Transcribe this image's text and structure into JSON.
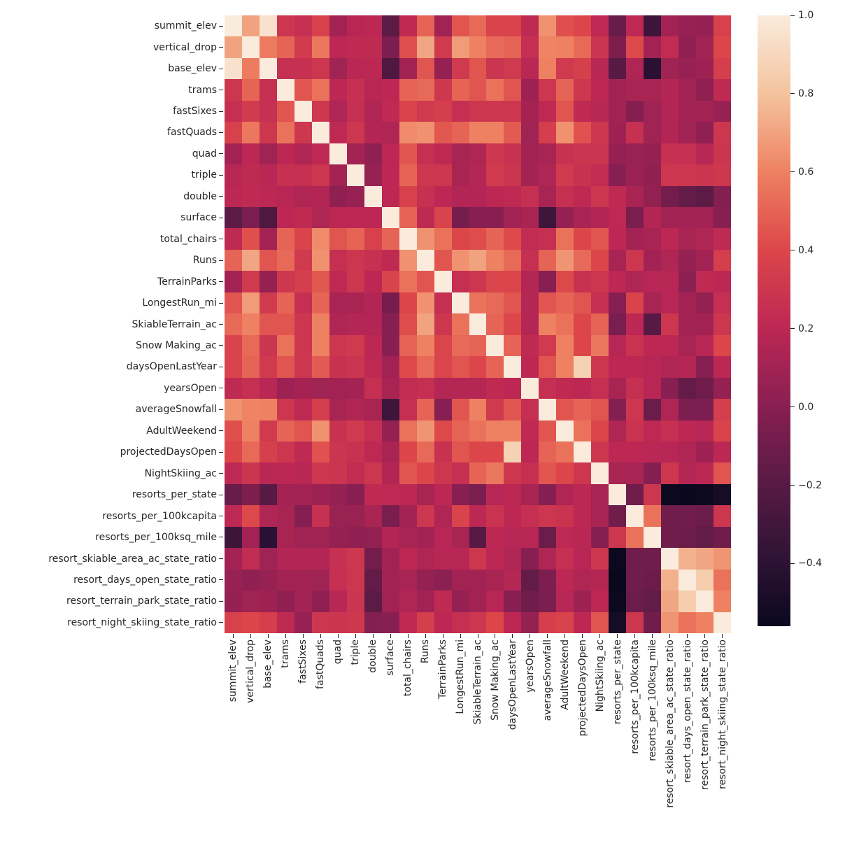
{
  "figure": {
    "background": "#ffffff",
    "text_color": "#262626"
  },
  "chart_data": {
    "type": "heatmap",
    "title": "",
    "xlabel": "",
    "ylabel": "",
    "legend_position": "colorbar-right",
    "grid": false,
    "symmetric": true,
    "colormap": "rocket",
    "vmin": -0.56,
    "vmax": 1.0,
    "variables": [
      "summit_elev",
      "vertical_drop",
      "base_elev",
      "trams",
      "fastSixes",
      "fastQuads",
      "quad",
      "triple",
      "double",
      "surface",
      "total_chairs",
      "Runs",
      "TerrainParks",
      "LongestRun_mi",
      "SkiableTerrain_ac",
      "Snow Making_ac",
      "daysOpenLastYear",
      "yearsOpen",
      "averageSnowfall",
      "AdultWeekend",
      "projectedDaysOpen",
      "NightSkiing_ac",
      "resorts_per_state",
      "resorts_per_100kcapita",
      "resorts_per_100ksq_mile",
      "resort_skiable_area_ac_state_ratio",
      "resort_days_open_state_ratio",
      "resort_terrain_park_state_ratio",
      "resort_night_skiing_state_ratio"
    ],
    "matrix_upper_triangle_by_row": [
      [
        1.0,
        0.7,
        0.95,
        0.3,
        0.25,
        0.37,
        0.1,
        0.18,
        0.2,
        -0.18,
        0.22,
        0.5,
        0.1,
        0.45,
        0.52,
        0.38,
        0.38,
        0.22,
        0.65,
        0.43,
        0.4,
        0.21,
        -0.13,
        0.21,
        -0.32,
        0.1,
        0.06,
        0.05,
        0.37
      ],
      [
        1.0,
        0.58,
        0.5,
        0.33,
        0.57,
        0.2,
        0.22,
        0.22,
        -0.05,
        0.43,
        0.71,
        0.32,
        0.68,
        0.6,
        0.52,
        0.5,
        0.25,
        0.61,
        0.6,
        0.52,
        0.29,
        -0.04,
        0.41,
        0.1,
        0.23,
        0.03,
        0.09,
        0.4
      ],
      [
        1.0,
        0.25,
        0.26,
        0.3,
        0.09,
        0.19,
        0.2,
        -0.24,
        0.1,
        0.45,
        0.05,
        0.32,
        0.45,
        0.29,
        0.32,
        0.19,
        0.6,
        0.32,
        0.36,
        0.19,
        -0.2,
        0.15,
        -0.41,
        0.09,
        0.06,
        0.08,
        0.35
      ],
      [
        1.0,
        0.45,
        0.55,
        0.2,
        0.26,
        0.18,
        0.2,
        0.5,
        0.52,
        0.31,
        0.5,
        0.45,
        0.55,
        0.45,
        0.08,
        0.3,
        0.5,
        0.3,
        0.2,
        0.1,
        0.12,
        0.12,
        0.16,
        0.1,
        0.03,
        0.22
      ],
      [
        1.0,
        0.31,
        0.15,
        0.25,
        0.15,
        0.22,
        0.38,
        0.32,
        0.35,
        0.25,
        0.3,
        0.3,
        0.3,
        0.11,
        0.21,
        0.45,
        0.22,
        0.19,
        0.1,
        -0.01,
        0.09,
        0.16,
        0.1,
        0.1,
        0.06
      ],
      [
        1.0,
        0.21,
        0.3,
        0.16,
        0.15,
        0.63,
        0.65,
        0.46,
        0.5,
        0.6,
        0.6,
        0.47,
        0.09,
        0.35,
        0.65,
        0.44,
        0.3,
        0.08,
        0.26,
        0.09,
        0.16,
        0.09,
        0.03,
        0.3
      ],
      [
        1.0,
        0.1,
        0.03,
        0.2,
        0.45,
        0.25,
        0.21,
        0.12,
        0.15,
        0.3,
        0.27,
        0.1,
        0.12,
        0.27,
        0.29,
        0.29,
        0.05,
        0.07,
        0.05,
        0.26,
        0.25,
        0.19,
        0.29
      ],
      [
        1.0,
        0.06,
        0.2,
        0.5,
        0.3,
        0.3,
        0.13,
        0.17,
        0.32,
        0.29,
        0.11,
        0.15,
        0.32,
        0.27,
        0.23,
        0.0,
        0.07,
        0.03,
        0.3,
        0.3,
        0.29,
        0.31
      ],
      [
        1.0,
        0.2,
        0.37,
        0.26,
        0.2,
        0.16,
        0.16,
        0.2,
        0.21,
        0.25,
        0.12,
        0.25,
        0.21,
        0.3,
        0.22,
        0.12,
        0.04,
        -0.08,
        -0.15,
        -0.18,
        -0.02
      ],
      [
        1.0,
        0.5,
        0.22,
        0.38,
        -0.07,
        0.0,
        0.0,
        0.1,
        0.13,
        -0.31,
        0.05,
        0.13,
        0.16,
        0.21,
        -0.06,
        0.16,
        0.1,
        0.1,
        0.1,
        0.0
      ],
      [
        1.0,
        0.65,
        0.55,
        0.4,
        0.42,
        0.5,
        0.41,
        0.23,
        0.25,
        0.55,
        0.4,
        0.45,
        0.2,
        0.1,
        0.12,
        0.2,
        0.12,
        0.15,
        0.22
      ],
      [
        1.0,
        0.45,
        0.65,
        0.7,
        0.6,
        0.52,
        0.25,
        0.5,
        0.66,
        0.52,
        0.4,
        0.12,
        0.3,
        0.1,
        0.15,
        0.05,
        0.1,
        0.35
      ],
      [
        1.0,
        0.25,
        0.3,
        0.39,
        0.39,
        0.17,
        0.0,
        0.41,
        0.27,
        0.3,
        0.2,
        0.15,
        0.18,
        0.18,
        0.02,
        0.22,
        0.2
      ],
      [
        1.0,
        0.55,
        0.52,
        0.45,
        0.17,
        0.45,
        0.5,
        0.45,
        0.25,
        0.0,
        0.38,
        0.12,
        0.18,
        0.1,
        0.05,
        0.25
      ],
      [
        1.0,
        0.5,
        0.4,
        0.17,
        0.6,
        0.55,
        0.4,
        0.5,
        -0.06,
        0.2,
        -0.2,
        0.3,
        0.1,
        0.1,
        0.3
      ],
      [
        1.0,
        0.5,
        0.22,
        0.32,
        0.6,
        0.4,
        0.57,
        0.18,
        0.28,
        0.2,
        0.2,
        0.12,
        0.18,
        0.4
      ],
      [
        1.0,
        0.2,
        0.45,
        0.6,
        0.87,
        0.3,
        0.2,
        0.2,
        0.18,
        0.15,
        0.17,
        0.0,
        0.2
      ],
      [
        1.0,
        0.25,
        0.22,
        0.2,
        0.25,
        0.12,
        0.25,
        0.18,
        0.0,
        -0.15,
        -0.1,
        0.05
      ],
      [
        1.0,
        0.45,
        0.5,
        0.45,
        -0.01,
        0.3,
        -0.12,
        0.15,
        -0.05,
        -0.05,
        0.35
      ],
      [
        1.0,
        0.55,
        0.4,
        0.15,
        0.28,
        0.21,
        0.25,
        0.2,
        0.18,
        0.38
      ],
      [
        1.0,
        0.3,
        0.2,
        0.2,
        0.19,
        0.18,
        0.15,
        0.08,
        0.2
      ],
      [
        1.0,
        0.12,
        0.12,
        -0.01,
        0.3,
        0.17,
        0.2,
        0.45
      ],
      [
        1.0,
        -0.1,
        0.3,
        -0.55,
        -0.56,
        -0.55,
        -0.5
      ],
      [
        1.0,
        0.55,
        -0.1,
        -0.1,
        -0.12,
        0.3
      ],
      [
        1.0,
        -0.1,
        -0.11,
        -0.15,
        -0.1
      ],
      [
        1.0,
        0.74,
        0.71,
        0.66
      ],
      [
        1.0,
        0.85,
        0.55
      ],
      [
        1.0,
        0.6
      ],
      [
        1.0
      ]
    ],
    "colormap_anchors": [
      {
        "value": -0.56,
        "rgb": [
          10,
          8,
          30
        ]
      },
      {
        "value": -0.4,
        "rgb": [
          44,
          18,
          52
        ]
      },
      {
        "value": -0.2,
        "rgb": [
          87,
          26,
          68
        ]
      },
      {
        "value": 0.0,
        "rgb": [
          136,
          31,
          82
        ]
      },
      {
        "value": 0.2,
        "rgb": [
          188,
          39,
          84
        ]
      },
      {
        "value": 0.4,
        "rgb": [
          220,
          70,
          74
        ]
      },
      {
        "value": 0.6,
        "rgb": [
          238,
          129,
          97
        ]
      },
      {
        "value": 0.8,
        "rgb": [
          244,
          196,
          158
        ]
      },
      {
        "value": 1.0,
        "rgb": [
          250,
          235,
          221
        ]
      }
    ],
    "colorbar_ticks": [
      {
        "value": 1.0,
        "label": "1.0"
      },
      {
        "value": 0.8,
        "label": "0.8"
      },
      {
        "value": 0.6,
        "label": "0.6"
      },
      {
        "value": 0.4,
        "label": "0.4"
      },
      {
        "value": 0.2,
        "label": "0.2"
      },
      {
        "value": 0.0,
        "label": "0.0"
      },
      {
        "value": -0.2,
        "label": "−0.2"
      },
      {
        "value": -0.4,
        "label": "−0.4"
      }
    ]
  }
}
